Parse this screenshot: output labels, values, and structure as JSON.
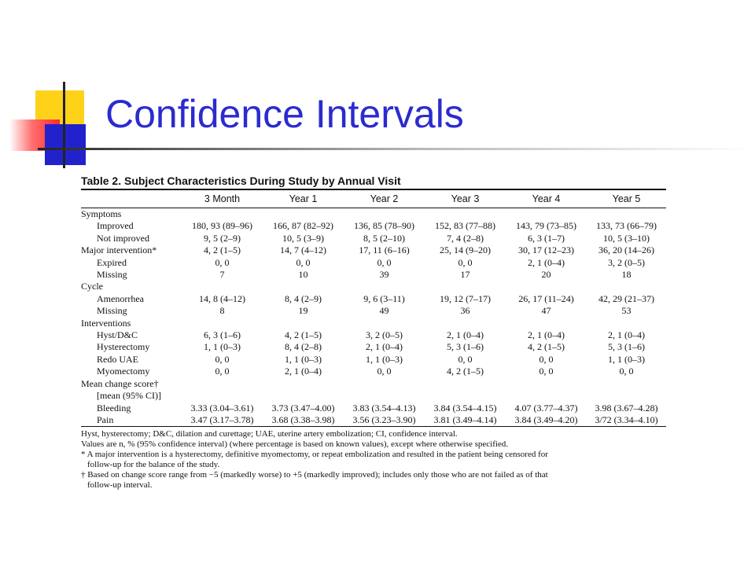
{
  "slide": {
    "title": "Confidence Intervals"
  },
  "table": {
    "caption": "Table 2.  Subject Characteristics During Study by Annual Visit",
    "columns": [
      "",
      "3 Month",
      "Year 1",
      "Year 2",
      "Year 3",
      "Year 4",
      "Year 5"
    ],
    "rows": [
      {
        "label": "Symptoms",
        "indent": false,
        "values": [
          "",
          "",
          "",
          "",
          "",
          ""
        ]
      },
      {
        "label": "Improved",
        "indent": true,
        "values": [
          "180, 93 (89–96)",
          "166, 87 (82–92)",
          "136, 85 (78–90)",
          "152, 83 (77–88)",
          "143, 79 (73–85)",
          "133, 73 (66–79)"
        ]
      },
      {
        "label": "Not improved",
        "indent": true,
        "values": [
          "9, 5 (2–9)",
          "10, 5 (3–9)",
          "8, 5 (2–10)",
          "7, 4 (2–8)",
          "6, 3 (1–7)",
          "10, 5 (3–10)"
        ]
      },
      {
        "label": "Major intervention*",
        "indent": false,
        "values": [
          "4, 2 (1–5)",
          "14, 7 (4–12)",
          "17, 11 (6–16)",
          "25, 14 (9–20)",
          "30, 17 (12–23)",
          "36, 20 (14–26)"
        ]
      },
      {
        "label": "Expired",
        "indent": true,
        "values": [
          "0, 0",
          "0, 0",
          "0, 0",
          "0, 0",
          "2, 1 (0–4)",
          "3, 2 (0–5)"
        ]
      },
      {
        "label": "Missing",
        "indent": true,
        "values": [
          "7",
          "10",
          "39",
          "17",
          "20",
          "18"
        ]
      },
      {
        "label": "Cycle",
        "indent": false,
        "values": [
          "",
          "",
          "",
          "",
          "",
          ""
        ]
      },
      {
        "label": "Amenorrhea",
        "indent": true,
        "values": [
          "14, 8 (4–12)",
          "8, 4 (2–9)",
          "9, 6 (3–11)",
          "19, 12 (7–17)",
          "26, 17 (11–24)",
          "42, 29 (21–37)"
        ]
      },
      {
        "label": "Missing",
        "indent": true,
        "values": [
          "8",
          "19",
          "49",
          "36",
          "47",
          "53"
        ]
      },
      {
        "label": "Interventions",
        "indent": false,
        "values": [
          "",
          "",
          "",
          "",
          "",
          ""
        ]
      },
      {
        "label": "Hyst/D&C",
        "indent": true,
        "values": [
          "6, 3 (1–6)",
          "4, 2 (1–5)",
          "3, 2 (0–5)",
          "2, 1 (0–4)",
          "2, 1 (0–4)",
          "2, 1 (0–4)"
        ]
      },
      {
        "label": "Hysterectomy",
        "indent": true,
        "values": [
          "1, 1 (0–3)",
          "8, 4 (2–8)",
          "2, 1 (0–4)",
          "5, 3 (1–6)",
          "4, 2 (1–5)",
          "5, 3 (1–6)"
        ]
      },
      {
        "label": "Redo UAE",
        "indent": true,
        "values": [
          "0, 0",
          "1, 1 (0–3)",
          "1, 1 (0–3)",
          "0, 0",
          "0, 0",
          "1, 1 (0–3)"
        ]
      },
      {
        "label": "Myomectomy",
        "indent": true,
        "values": [
          "0, 0",
          "2, 1 (0–4)",
          "0, 0",
          "4, 2 (1–5)",
          "0, 0",
          "0, 0"
        ]
      },
      {
        "label": "Mean change score†",
        "indent": false,
        "values": [
          "",
          "",
          "",
          "",
          "",
          ""
        ]
      },
      {
        "label": "[mean (95% CI)]",
        "indent": true,
        "values": [
          "",
          "",
          "",
          "",
          "",
          ""
        ]
      },
      {
        "label": "Bleeding",
        "indent": true,
        "values": [
          "3.33 (3.04–3.61)",
          "3.73 (3.47–4.00)",
          "3.83 (3.54–4.13)",
          "3.84 (3.54–4.15)",
          "4.07 (3.77–4.37)",
          "3.98 (3.67–4.28)"
        ]
      },
      {
        "label": "Pain",
        "indent": true,
        "values": [
          "3.47 (3.17–3.78)",
          "3.68 (3.38–3.98)",
          "3.56 (3.23–3.90)",
          "3.81 (3.49–4.14)",
          "3.84 (3.49–4.20)",
          "3/72 (3.34–4.10)"
        ]
      }
    ],
    "footnotes": [
      {
        "text": "Hyst, hysterectomy; D&C, dilation and curettage; UAE, uterine artery embolization; CI, confidence interval.",
        "cont": false
      },
      {
        "text": "Values are n, % (95% confidence interval) (where percentage is based on known values), except where otherwise specified.",
        "cont": false
      },
      {
        "text": "* A major intervention is a hysterectomy, definitive myomectomy, or repeat embolization and resulted in the patient being censored for",
        "cont": false
      },
      {
        "text": "follow-up for the balance of the study.",
        "cont": true
      },
      {
        "text": "† Based on change score range from −5 (markedly worse) to +5 (markedly improved); includes only those who are not failed as of that",
        "cont": false
      },
      {
        "text": "follow-up interval.",
        "cont": true
      }
    ]
  }
}
